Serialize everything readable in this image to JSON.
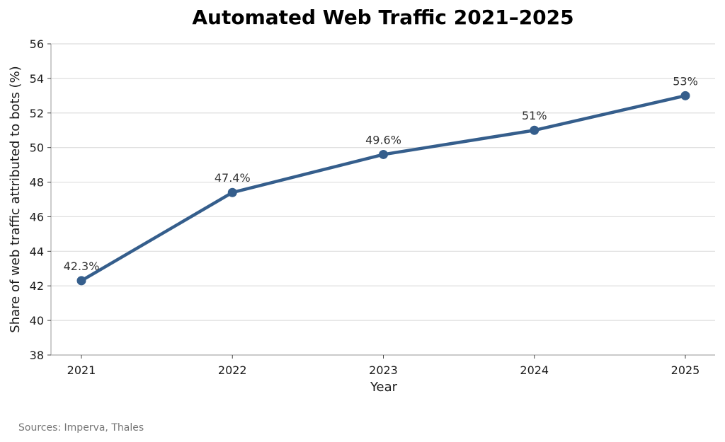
{
  "chart_data": {
    "type": "line",
    "title": "Automated Web Traffic 2021–2025",
    "xlabel": "Year",
    "ylabel": "Share of web traffic attributed to bots (%)",
    "categories": [
      "2021",
      "2022",
      "2023",
      "2024",
      "2025"
    ],
    "series": [
      {
        "values": [
          42.3,
          47.4,
          49.6,
          51,
          53
        ],
        "data_labels": [
          "42.3%",
          "47.4%",
          "49.6%",
          "51%",
          "53%"
        ],
        "color": "#355e8c"
      }
    ],
    "ylim": [
      38,
      56
    ],
    "yticks": [
      38,
      40,
      42,
      44,
      46,
      48,
      50,
      52,
      54,
      56
    ],
    "grid": "horizontal",
    "legend": "none"
  },
  "footer": {
    "source": "Sources: Imperva, Thales"
  }
}
